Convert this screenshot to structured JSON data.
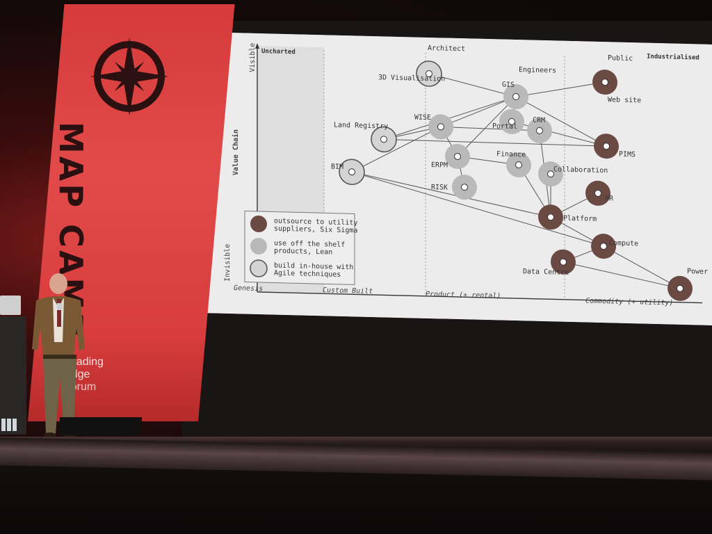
{
  "banner": {
    "title": "MAP CAMP",
    "sponsor": [
      "Leading",
      "Edge",
      "Forum"
    ]
  },
  "slide": {
    "corner_left": "Uncharted",
    "corner_right": "Industrialised",
    "y_axis": {
      "label": "Value Chain",
      "top": "Visible",
      "bottom": "Invisible"
    },
    "x_axis": [
      "Genesis",
      "Custom Built",
      "Product (+ rental)",
      "Commodity (+ utility)"
    ],
    "legend": [
      {
        "style": "outsource",
        "text": [
          "outsource to utility",
          "suppliers, Six Sigma"
        ]
      },
      {
        "style": "offshelf",
        "text": [
          "use off the shelf",
          "products, Lean"
        ]
      },
      {
        "style": "inhouse",
        "text": [
          "build in-house with",
          "Agile techniques"
        ]
      }
    ],
    "nodes": [
      {
        "id": "architect",
        "label": "Architect",
        "style": "inhouse"
      },
      {
        "id": "viz3d",
        "label": "3D Visualisation",
        "style": "inhouse"
      },
      {
        "id": "engineers",
        "label": "Engineers",
        "style": "offshelf"
      },
      {
        "id": "gis",
        "label": "GIS",
        "style": "offshelf"
      },
      {
        "id": "public",
        "label": "Public",
        "style": "outsource"
      },
      {
        "id": "website",
        "label": "Web site",
        "style": "outsource"
      },
      {
        "id": "wise",
        "label": "WISE",
        "style": "offshelf"
      },
      {
        "id": "portal",
        "label": "Portal",
        "style": "offshelf"
      },
      {
        "id": "crm",
        "label": "CRM",
        "style": "offshelf"
      },
      {
        "id": "landreg",
        "label": "Land Registry",
        "style": "inhouse"
      },
      {
        "id": "pims",
        "label": "PIMS",
        "style": "outsource"
      },
      {
        "id": "erpm",
        "label": "ERPM",
        "style": "offshelf"
      },
      {
        "id": "finance",
        "label": "Finance",
        "style": "offshelf"
      },
      {
        "id": "collab",
        "label": "Collaboration",
        "style": "offshelf"
      },
      {
        "id": "bim",
        "label": "BIM",
        "style": "inhouse"
      },
      {
        "id": "risk",
        "label": "RISK",
        "style": "offshelf"
      },
      {
        "id": "hr",
        "label": "HR",
        "style": "outsource"
      },
      {
        "id": "platform",
        "label": "Platform",
        "style": "outsource"
      },
      {
        "id": "compute",
        "label": "Compute",
        "style": "outsource"
      },
      {
        "id": "datacentre",
        "label": "Data Centre",
        "style": "outsource"
      },
      {
        "id": "power",
        "label": "Power",
        "style": "outsource"
      }
    ],
    "links": [
      [
        "architect",
        "gis"
      ],
      [
        "gis",
        "website"
      ],
      [
        "gis",
        "wise"
      ],
      [
        "gis",
        "landreg"
      ],
      [
        "gis",
        "erpm"
      ],
      [
        "gis",
        "pims"
      ],
      [
        "gis",
        "portal"
      ],
      [
        "wise",
        "landreg"
      ],
      [
        "wise",
        "crm"
      ],
      [
        "wise",
        "erpm"
      ],
      [
        "wise",
        "bim"
      ],
      [
        "landreg",
        "pims"
      ],
      [
        "erpm",
        "finance"
      ],
      [
        "erpm",
        "risk"
      ],
      [
        "crm",
        "platform"
      ],
      [
        "finance",
        "platform"
      ],
      [
        "collab",
        "platform"
      ],
      [
        "hr",
        "platform"
      ],
      [
        "bim",
        "platform"
      ],
      [
        "bim",
        "compute"
      ],
      [
        "platform",
        "compute"
      ],
      [
        "compute",
        "datacentre"
      ],
      [
        "compute",
        "power"
      ],
      [
        "datacentre",
        "power"
      ],
      [
        "portal",
        "pims"
      ]
    ]
  },
  "colors": {
    "outsource": "#6b4a44",
    "offshelf": "#b9b9b9",
    "inhouse": "#d4d4d4",
    "banner": "#d83c3c"
  }
}
